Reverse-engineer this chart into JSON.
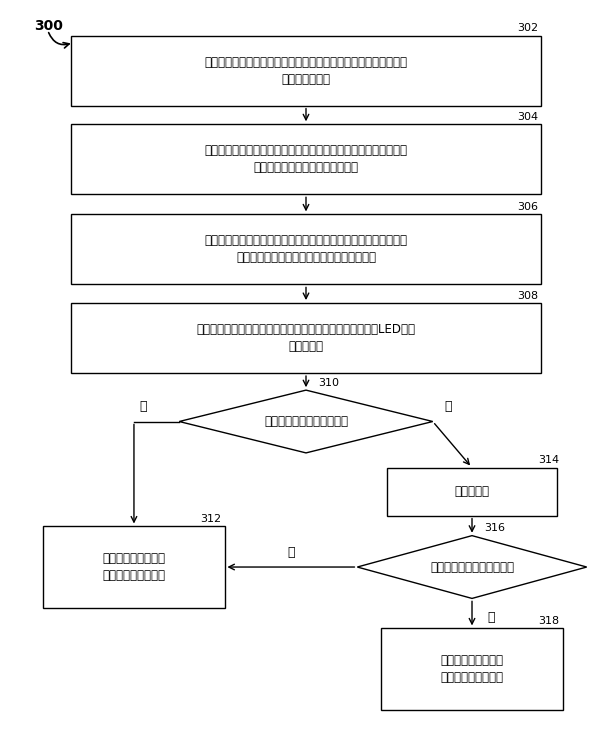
{
  "bg_color": "#ffffff",
  "box302_text": "检测车库中指定区域内的红外辐射，并产生表示所述红外辐射强度\n的红外检测信号",
  "box304_text": "测定所述车库的环境温度，根据所述环境温度补偿所述红外检测信\n号，并产生补偿后的红外检测信号",
  "box306_text": "比较所述补偿后的红外检测信号和预设阈值的大小，并据此产生表\n示是否有车辆位于所述指定区域内的识别信号",
  "box308_text": "根据所述识别信号产生控制信号，以控制所述发光二极管（LED）车\n库灯的亮度",
  "diamond310_text": "有车辆进入所述指定区域？",
  "box314_text": "启动计时器",
  "diamond316_text": "有车辆进入所述指定区域？",
  "box312_text": "将所述发光二极管车\n库灯调节至第一亮度",
  "box318_text": "将所述发光二极管车\n库灯调节至第二亮度",
  "label_300": "300",
  "label_302": "302",
  "label_304": "304",
  "label_306": "306",
  "label_308": "308",
  "label_310": "310",
  "label_312": "312",
  "label_314": "314",
  "label_316": "316",
  "label_318": "318",
  "yes_label": "是",
  "no_label": "否"
}
